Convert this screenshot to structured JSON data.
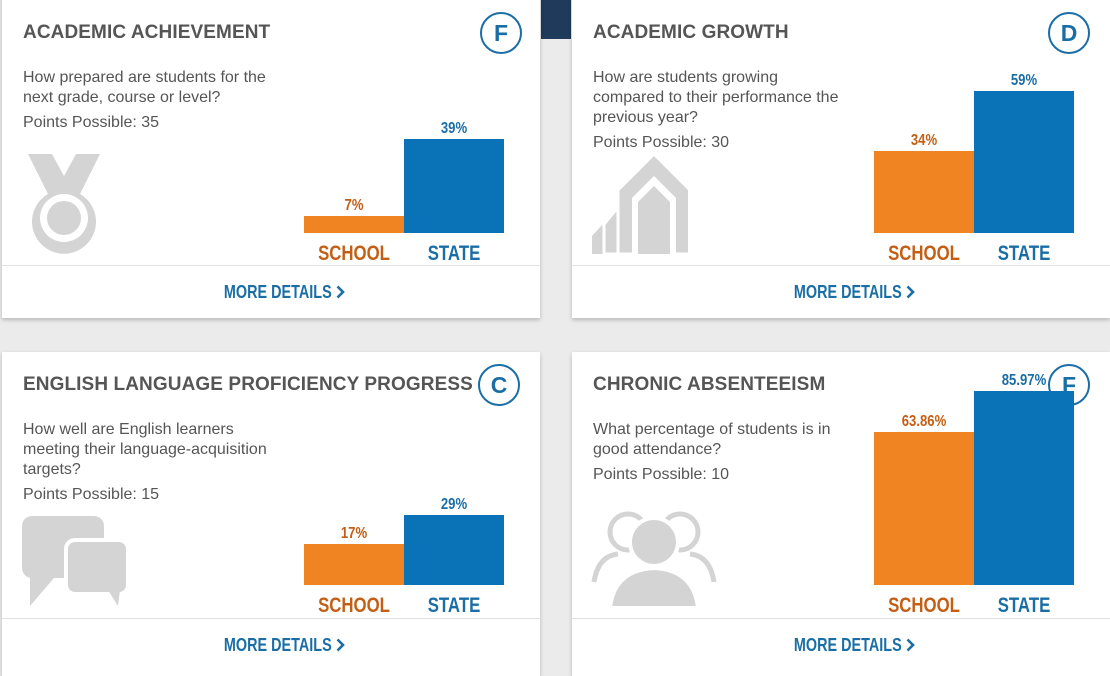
{
  "colors": {
    "school": "#f08423",
    "state": "#0a72b6",
    "school_text": "#c35f14",
    "state_text": "#1a6ea5",
    "icon_gray": "#d4d4d4"
  },
  "cards": [
    {
      "title": "ACADEMIC ACHIEVEMENT",
      "grade": "F",
      "question": "How prepared are students for the next grade, course or level?",
      "points": "Points Possible: 35",
      "icon": "medal-icon",
      "more_details": "MORE DETAILS"
    },
    {
      "title": "ACADEMIC GROWTH",
      "grade": "D",
      "question": "How are students growing compared to their performance the previous year?",
      "points": "Points Possible: 30",
      "icon": "growth-arrows-icon",
      "more_details": "MORE DETAILS"
    },
    {
      "title": "ENGLISH LANGUAGE PROFICIENCY PROGRESS",
      "grade": "C",
      "question": "How well are English learners meeting their language-acquisition targets?",
      "points": "Points Possible: 15",
      "icon": "speech-bubbles-icon",
      "more_details": "MORE DETAILS"
    },
    {
      "title": "CHRONIC ABSENTEEISM",
      "grade": "F",
      "question": "What percentage of students is in good attendance?",
      "points": "Points Possible: 10",
      "icon": "people-group-icon",
      "more_details": "MORE DETAILS"
    }
  ],
  "chart_data": [
    {
      "type": "bar",
      "categories": [
        "SCHOOL",
        "STATE"
      ],
      "values": [
        7,
        39
      ],
      "labels": [
        "7%",
        "39%"
      ],
      "ylim": [
        0,
        100
      ],
      "title": "",
      "xlabel": "",
      "ylabel": ""
    },
    {
      "type": "bar",
      "categories": [
        "SCHOOL",
        "STATE"
      ],
      "values": [
        34,
        59
      ],
      "labels": [
        "34%",
        "59%"
      ],
      "ylim": [
        0,
        100
      ],
      "title": "",
      "xlabel": "",
      "ylabel": ""
    },
    {
      "type": "bar",
      "categories": [
        "SCHOOL",
        "STATE"
      ],
      "values": [
        17,
        29
      ],
      "labels": [
        "17%",
        "29%"
      ],
      "ylim": [
        0,
        100
      ],
      "title": "",
      "xlabel": "",
      "ylabel": ""
    },
    {
      "type": "bar",
      "categories": [
        "SCHOOL",
        "STATE"
      ],
      "values": [
        63.86,
        85.97
      ],
      "labels": [
        "63.86%",
        "85.97%"
      ],
      "ylim": [
        0,
        100
      ],
      "title": "",
      "xlabel": "",
      "ylabel": ""
    }
  ]
}
